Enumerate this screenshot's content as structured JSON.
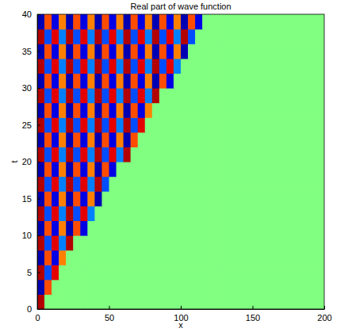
{
  "chart_data": {
    "type": "heatmap",
    "title": "Real part of wave function",
    "x_label": "x",
    "y_label": "t",
    "xlim": [
      0,
      200
    ],
    "ylim": [
      0,
      40
    ],
    "xticks": [
      0,
      50,
      100,
      150,
      200
    ],
    "yticks": [
      0,
      5,
      10,
      15,
      20,
      25,
      30,
      35,
      40
    ],
    "grid": false,
    "zlim": [
      -1,
      1
    ],
    "x_edges": [
      0,
      5,
      10,
      15,
      20,
      25,
      30,
      35,
      40,
      45,
      50,
      55,
      60,
      65,
      70,
      75,
      80,
      85,
      90,
      95,
      100,
      105,
      110,
      115,
      120,
      125,
      130,
      135,
      140,
      145,
      150,
      155,
      160,
      165,
      170,
      175,
      180,
      185,
      190,
      195,
      200
    ],
    "y_edges": [
      0,
      2,
      4,
      6,
      8,
      10,
      12,
      14,
      16,
      18,
      20,
      22,
      24,
      26,
      28,
      30,
      32,
      34,
      36,
      38,
      40
    ],
    "z": [
      [
        0.9,
        0,
        0,
        0,
        0,
        0,
        0,
        0,
        0,
        0,
        0,
        0,
        0,
        0,
        0,
        0,
        0,
        0,
        0,
        0,
        0,
        0,
        0,
        0,
        0,
        0,
        0,
        0,
        0,
        0,
        0,
        0,
        0,
        0,
        0,
        0,
        0,
        0,
        0,
        0
      ],
      [
        -0.9,
        0.6,
        0,
        0,
        0,
        0,
        0,
        0,
        0,
        0,
        0,
        0,
        0,
        0,
        0,
        0,
        0,
        0,
        0,
        0,
        0,
        0,
        0,
        0,
        0,
        0,
        0,
        0,
        0,
        0,
        0,
        0,
        0,
        0,
        0,
        0,
        0,
        0,
        0,
        0
      ],
      [
        0.9,
        -0.6,
        0.8,
        0,
        0,
        0,
        0,
        0,
        0,
        0,
        0,
        0,
        0,
        0,
        0,
        0,
        0,
        0,
        0,
        0,
        0,
        0,
        0,
        0,
        0,
        0,
        0,
        0,
        0,
        0,
        0,
        0,
        0,
        0,
        0,
        0,
        0,
        0,
        0,
        0
      ],
      [
        -0.9,
        0.6,
        -0.8,
        0.5,
        0,
        0,
        0,
        0,
        0,
        0,
        0,
        0,
        0,
        0,
        0,
        0,
        0,
        0,
        0,
        0,
        0,
        0,
        0,
        0,
        0,
        0,
        0,
        0,
        0,
        0,
        0,
        0,
        0,
        0,
        0,
        0,
        0,
        0,
        0,
        0
      ],
      [
        0.9,
        -0.6,
        0.8,
        -0.5,
        0.9,
        0,
        0,
        0,
        0,
        0,
        0,
        0,
        0,
        0,
        0,
        0,
        0,
        0,
        0,
        0,
        0,
        0,
        0,
        0,
        0,
        0,
        0,
        0,
        0,
        0,
        0,
        0,
        0,
        0,
        0,
        0,
        0,
        0,
        0,
        0
      ],
      [
        -0.9,
        0.6,
        -0.8,
        0.5,
        -0.9,
        0.6,
        -0.8,
        0,
        0,
        0,
        0,
        0,
        0,
        0,
        0,
        0,
        0,
        0,
        0,
        0,
        0,
        0,
        0,
        0,
        0,
        0,
        0,
        0,
        0,
        0,
        0,
        0,
        0,
        0,
        0,
        0,
        0,
        0,
        0,
        0
      ],
      [
        0.9,
        -0.6,
        0.8,
        -0.5,
        0.9,
        -0.6,
        0.8,
        -0.5,
        0,
        0,
        0,
        0,
        0,
        0,
        0,
        0,
        0,
        0,
        0,
        0,
        0,
        0,
        0,
        0,
        0,
        0,
        0,
        0,
        0,
        0,
        0,
        0,
        0,
        0,
        0,
        0,
        0,
        0,
        0,
        0
      ],
      [
        -0.9,
        0.6,
        -0.8,
        0.5,
        -0.9,
        0.6,
        -0.8,
        0.5,
        -0.9,
        0,
        0,
        0,
        0,
        0,
        0,
        0,
        0,
        0,
        0,
        0,
        0,
        0,
        0,
        0,
        0,
        0,
        0,
        0,
        0,
        0,
        0,
        0,
        0,
        0,
        0,
        0,
        0,
        0,
        0,
        0
      ],
      [
        0.9,
        -0.6,
        0.8,
        -0.5,
        0.9,
        -0.6,
        0.8,
        -0.5,
        0.9,
        -0.6,
        0,
        0,
        0,
        0,
        0,
        0,
        0,
        0,
        0,
        0,
        0,
        0,
        0,
        0,
        0,
        0,
        0,
        0,
        0,
        0,
        0,
        0,
        0,
        0,
        0,
        0,
        0,
        0,
        0,
        0
      ],
      [
        -0.9,
        0.6,
        -0.8,
        0.5,
        -0.9,
        0.6,
        -0.8,
        0.5,
        -0.9,
        0.6,
        -0.8,
        0,
        0,
        0,
        0,
        0,
        0,
        0,
        0,
        0,
        0,
        0,
        0,
        0,
        0,
        0,
        0,
        0,
        0,
        0,
        0,
        0,
        0,
        0,
        0,
        0,
        0,
        0,
        0,
        0
      ],
      [
        0.9,
        -0.6,
        0.8,
        -0.5,
        0.9,
        -0.6,
        0.8,
        -0.5,
        0.9,
        -0.6,
        0.8,
        -0.5,
        0.9,
        0,
        0,
        0,
        0,
        0,
        0,
        0,
        0,
        0,
        0,
        0,
        0,
        0,
        0,
        0,
        0,
        0,
        0,
        0,
        0,
        0,
        0,
        0,
        0,
        0,
        0,
        0
      ],
      [
        -0.9,
        0.6,
        -0.8,
        0.5,
        -0.9,
        0.6,
        -0.8,
        0.5,
        -0.9,
        0.6,
        -0.8,
        0.5,
        -0.9,
        0.6,
        0,
        0,
        0,
        0,
        0,
        0,
        0,
        0,
        0,
        0,
        0,
        0,
        0,
        0,
        0,
        0,
        0,
        0,
        0,
        0,
        0,
        0,
        0,
        0,
        0,
        0
      ],
      [
        0.9,
        -0.6,
        0.8,
        -0.5,
        0.9,
        -0.6,
        0.8,
        -0.5,
        0.9,
        -0.6,
        0.8,
        -0.5,
        0.9,
        -0.6,
        0.8,
        0,
        0,
        0,
        0,
        0,
        0,
        0,
        0,
        0,
        0,
        0,
        0,
        0,
        0,
        0,
        0,
        0,
        0,
        0,
        0,
        0,
        0,
        0,
        0,
        0
      ],
      [
        -0.9,
        0.6,
        -0.8,
        0.5,
        -0.9,
        0.6,
        -0.8,
        0.5,
        -0.9,
        0.6,
        -0.8,
        0.5,
        -0.9,
        0.6,
        -0.8,
        0.5,
        0,
        0,
        0,
        0,
        0,
        0,
        0,
        0,
        0,
        0,
        0,
        0,
        0,
        0,
        0,
        0,
        0,
        0,
        0,
        0,
        0,
        0,
        0,
        0
      ],
      [
        0.9,
        -0.6,
        0.8,
        -0.5,
        0.9,
        -0.6,
        0.8,
        -0.5,
        0.9,
        -0.6,
        0.8,
        -0.5,
        0.9,
        -0.6,
        0.8,
        -0.5,
        0.9,
        0,
        0,
        0,
        0,
        0,
        0,
        0,
        0,
        0,
        0,
        0,
        0,
        0,
        0,
        0,
        0,
        0,
        0,
        0,
        0,
        0,
        0,
        0
      ],
      [
        -0.9,
        0.6,
        -0.8,
        0.5,
        -0.9,
        0.6,
        -0.8,
        0.5,
        -0.9,
        0.6,
        -0.8,
        0.5,
        -0.9,
        0.6,
        -0.8,
        0.5,
        -0.9,
        0.6,
        -0.8,
        0,
        0,
        0,
        0,
        0,
        0,
        0,
        0,
        0,
        0,
        0,
        0,
        0,
        0,
        0,
        0,
        0,
        0,
        0,
        0,
        0
      ],
      [
        0.9,
        -0.6,
        0.8,
        -0.5,
        0.9,
        -0.6,
        0.8,
        -0.5,
        0.9,
        -0.6,
        0.8,
        -0.5,
        0.9,
        -0.6,
        0.8,
        -0.5,
        0.9,
        -0.6,
        0.8,
        -0.5,
        0,
        0,
        0,
        0,
        0,
        0,
        0,
        0,
        0,
        0,
        0,
        0,
        0,
        0,
        0,
        0,
        0,
        0,
        0,
        0
      ],
      [
        -0.9,
        0.6,
        -0.8,
        0.5,
        -0.9,
        0.6,
        -0.8,
        0.5,
        -0.9,
        0.6,
        -0.8,
        0.5,
        -0.9,
        0.6,
        -0.8,
        0.5,
        -0.9,
        0.6,
        -0.8,
        0.5,
        -0.9,
        0,
        0,
        0,
        0,
        0,
        0,
        0,
        0,
        0,
        0,
        0,
        0,
        0,
        0,
        0,
        0,
        0,
        0,
        0
      ],
      [
        0.9,
        -0.6,
        0.8,
        -0.5,
        0.9,
        -0.6,
        0.8,
        -0.5,
        0.9,
        -0.6,
        0.8,
        -0.5,
        0.9,
        -0.6,
        0.8,
        -0.5,
        0.9,
        -0.6,
        0.8,
        -0.5,
        0.9,
        -0.6,
        0,
        0,
        0,
        0,
        0,
        0,
        0,
        0,
        0,
        0,
        0,
        0,
        0,
        0,
        0,
        0,
        0,
        0
      ],
      [
        -0.9,
        0.6,
        -0.8,
        0.5,
        -0.9,
        0.6,
        -0.8,
        0.5,
        -0.9,
        0.6,
        -0.8,
        0.5,
        -0.9,
        0.6,
        -0.8,
        0.5,
        -0.9,
        0.6,
        -0.8,
        0.5,
        -0.9,
        0.6,
        -0.8,
        0,
        0,
        0,
        0,
        0,
        0,
        0,
        0,
        0,
        0,
        0,
        0,
        0,
        0,
        0,
        0,
        0
      ]
    ]
  }
}
